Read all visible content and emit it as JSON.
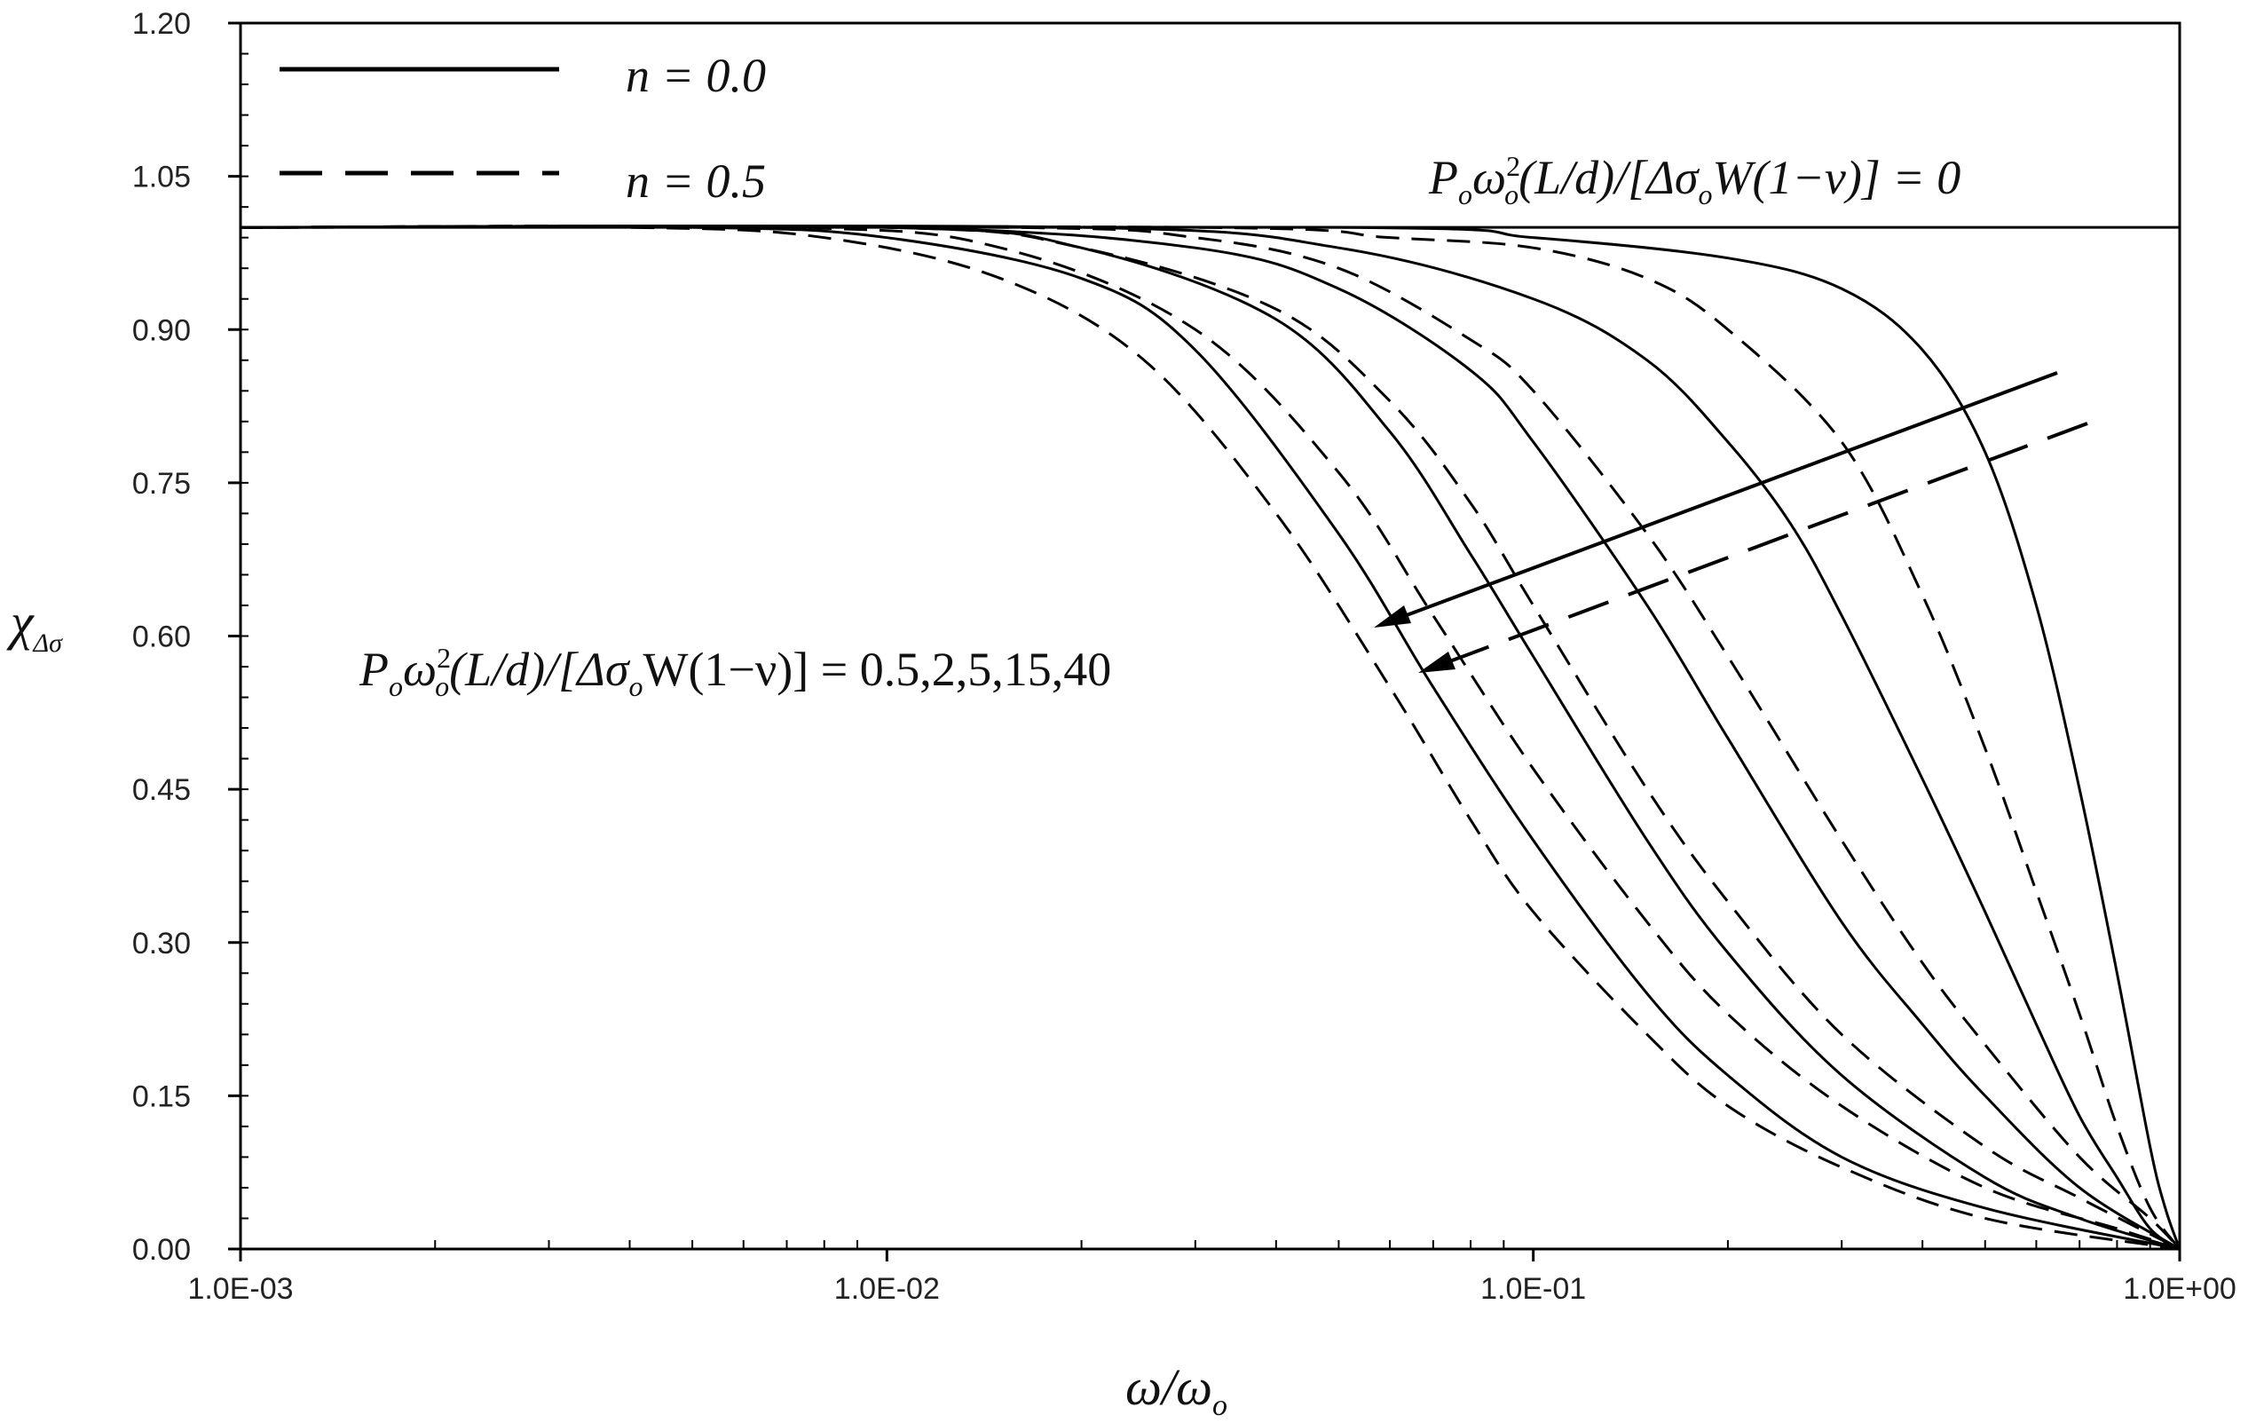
{
  "chart_data": {
    "type": "line",
    "x_scale": "log",
    "xlim": [
      0.001,
      1.0
    ],
    "ylim": [
      0.0,
      1.2
    ],
    "grid": false,
    "legend_position": "top-left",
    "x_ticks": [
      {
        "value": 0.001,
        "label": "1.0E-03"
      },
      {
        "value": 0.01,
        "label": "1.0E-02"
      },
      {
        "value": 0.1,
        "label": "1.0E-01"
      },
      {
        "value": 1.0,
        "label": "1.0E+00"
      }
    ],
    "y_ticks": [
      {
        "value": 0.0,
        "label": "0.00"
      },
      {
        "value": 0.15,
        "label": "0.15"
      },
      {
        "value": 0.3,
        "label": "0.30"
      },
      {
        "value": 0.45,
        "label": "0.45"
      },
      {
        "value": 0.6,
        "label": "0.60"
      },
      {
        "value": 0.75,
        "label": "0.75"
      },
      {
        "value": 0.9,
        "label": "0.90"
      },
      {
        "value": 1.05,
        "label": "1.05"
      },
      {
        "value": 1.2,
        "label": "1.20"
      }
    ],
    "xlabel": {
      "main": "ω/ω",
      "sub": "o"
    },
    "ylabel": {
      "main": "χ",
      "sub": "Δσ"
    },
    "legend": [
      {
        "label": "n = 0.0",
        "style": "solid"
      },
      {
        "label": "n = 0.5",
        "style": "dashed"
      }
    ],
    "annotations": {
      "zero_load": {
        "pre": "P",
        "sub1": "o",
        "w": "ω",
        "sub2": "o",
        "sup2": "2",
        "rest": "(L/d)/[Δσ",
        "sub3": "o",
        "tail": "W(1−ν)] = 0"
      },
      "loads": {
        "pre": "P",
        "sub1": "o",
        "w": "ω",
        "sub2": "o",
        "sup2": "2",
        "rest": "(L/d)/[Δσ",
        "sub3": "o",
        "tail": "W(1−ν)] = 0.5,2,5,15,40"
      }
    },
    "series": [
      {
        "n": 0.0,
        "style": "solid",
        "load": 0,
        "x": [
          0.001,
          1.0
        ],
        "y": [
          1.0,
          1.0
        ]
      },
      {
        "n": 0.0,
        "style": "solid",
        "load": 0.5,
        "x": [
          0.001,
          0.05,
          0.1,
          0.2,
          0.3,
          0.4,
          0.5,
          0.6,
          0.7,
          0.8,
          0.9,
          0.95,
          1.0
        ],
        "y": [
          1.0,
          1.0,
          0.99,
          0.97,
          0.94,
          0.88,
          0.78,
          0.63,
          0.45,
          0.27,
          0.1,
          0.04,
          0.0
        ]
      },
      {
        "n": 0.0,
        "style": "solid",
        "load": 2,
        "x": [
          0.001,
          0.02,
          0.05,
          0.1,
          0.15,
          0.2,
          0.25,
          0.3,
          0.4,
          0.5,
          0.6,
          0.7,
          0.8,
          0.9,
          1.0
        ],
        "y": [
          1.0,
          1.0,
          0.98,
          0.93,
          0.87,
          0.79,
          0.71,
          0.62,
          0.46,
          0.33,
          0.22,
          0.13,
          0.07,
          0.02,
          0.0
        ]
      },
      {
        "n": 0.0,
        "style": "solid",
        "load": 5,
        "x": [
          0.001,
          0.01,
          0.03,
          0.05,
          0.08,
          0.1,
          0.15,
          0.2,
          0.3,
          0.4,
          0.5,
          0.7,
          1.0
        ],
        "y": [
          1.0,
          1.0,
          0.98,
          0.94,
          0.86,
          0.79,
          0.63,
          0.5,
          0.32,
          0.22,
          0.15,
          0.06,
          0.0
        ]
      },
      {
        "n": 0.0,
        "style": "solid",
        "load": 15,
        "x": [
          0.001,
          0.01,
          0.02,
          0.04,
          0.06,
          0.08,
          0.1,
          0.15,
          0.2,
          0.3,
          0.5,
          0.7,
          1.0
        ],
        "y": [
          1.0,
          1.0,
          0.98,
          0.91,
          0.8,
          0.68,
          0.58,
          0.4,
          0.29,
          0.17,
          0.07,
          0.03,
          0.0
        ]
      },
      {
        "n": 0.0,
        "style": "solid",
        "load": 40,
        "x": [
          0.001,
          0.005,
          0.01,
          0.02,
          0.03,
          0.05,
          0.07,
          0.1,
          0.15,
          0.2,
          0.3,
          0.5,
          1.0
        ],
        "y": [
          1.0,
          1.0,
          0.99,
          0.95,
          0.88,
          0.7,
          0.55,
          0.4,
          0.25,
          0.17,
          0.09,
          0.04,
          0.0
        ]
      },
      {
        "n": 0.5,
        "style": "dashed",
        "load": 0.5,
        "x": [
          0.001,
          0.03,
          0.06,
          0.1,
          0.15,
          0.2,
          0.3,
          0.4,
          0.5,
          0.6,
          0.7,
          0.8,
          0.9,
          1.0
        ],
        "y": [
          1.0,
          1.0,
          0.99,
          0.98,
          0.95,
          0.9,
          0.79,
          0.64,
          0.49,
          0.35,
          0.23,
          0.12,
          0.04,
          0.0
        ]
      },
      {
        "n": 0.5,
        "style": "dashed",
        "load": 2,
        "x": [
          0.001,
          0.015,
          0.03,
          0.05,
          0.08,
          0.1,
          0.15,
          0.2,
          0.3,
          0.4,
          0.5,
          0.7,
          0.9,
          1.0
        ],
        "y": [
          1.0,
          1.0,
          0.99,
          0.96,
          0.89,
          0.84,
          0.7,
          0.58,
          0.4,
          0.28,
          0.2,
          0.09,
          0.03,
          0.0
        ]
      },
      {
        "n": 0.5,
        "style": "dashed",
        "load": 5,
        "x": [
          0.001,
          0.01,
          0.02,
          0.04,
          0.06,
          0.08,
          0.1,
          0.15,
          0.2,
          0.3,
          0.5,
          0.7,
          1.0
        ],
        "y": [
          1.0,
          1.0,
          0.98,
          0.92,
          0.83,
          0.73,
          0.63,
          0.45,
          0.34,
          0.21,
          0.1,
          0.05,
          0.0
        ]
      },
      {
        "n": 0.5,
        "style": "dashed",
        "load": 15,
        "x": [
          0.001,
          0.007,
          0.015,
          0.03,
          0.05,
          0.07,
          0.1,
          0.15,
          0.2,
          0.3,
          0.5,
          0.8,
          1.0
        ],
        "y": [
          1.0,
          1.0,
          0.98,
          0.9,
          0.76,
          0.62,
          0.47,
          0.32,
          0.23,
          0.14,
          0.06,
          0.02,
          0.0
        ]
      },
      {
        "n": 0.5,
        "style": "dashed",
        "load": 40,
        "x": [
          0.001,
          0.004,
          0.008,
          0.015,
          0.025,
          0.04,
          0.06,
          0.08,
          0.1,
          0.15,
          0.2,
          0.3,
          0.5,
          1.0
        ],
        "y": [
          1.0,
          1.0,
          0.99,
          0.95,
          0.87,
          0.72,
          0.55,
          0.42,
          0.33,
          0.21,
          0.14,
          0.08,
          0.03,
          0.0
        ]
      }
    ]
  }
}
